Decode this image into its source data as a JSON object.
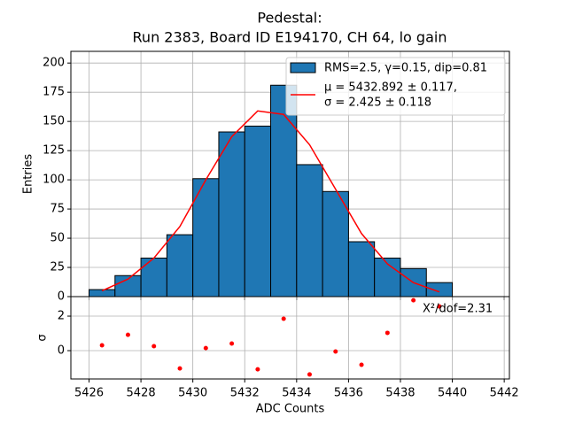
{
  "chart_data": [
    {
      "type": "histogram",
      "title": "Pedestal:",
      "subtitle": "Run 2383, Board ID E194170, CH 64, lo gain",
      "ylabel": "Entries",
      "bins": [
        5426,
        5427,
        5428,
        5429,
        5430,
        5431,
        5432,
        5433,
        5434,
        5435,
        5436,
        5437,
        5438,
        5439,
        5440
      ],
      "counts": [
        6,
        18,
        33,
        53,
        101,
        141,
        146,
        181,
        113,
        90,
        47,
        33,
        24,
        12
      ],
      "name": "RMS=2.5, γ=0.15, dip=0.81",
      "color": "#1f77b4",
      "edgecolor": "#000000",
      "fit": {
        "name": [
          "μ = 5432.892 ± 0.117,",
          "σ = 2.425 ± 0.118"
        ],
        "color": "#ff0000",
        "x": [
          5426.5,
          5427.5,
          5428.5,
          5429.5,
          5430.5,
          5431.5,
          5432.5,
          5433.5,
          5434.5,
          5435.5,
          5436.5,
          5437.5,
          5438.5,
          5439.5
        ],
        "values": [
          5,
          15,
          33,
          60,
          100,
          137,
          159,
          156,
          130,
          92,
          54,
          28,
          12,
          4
        ]
      },
      "xlim": [
        5425.3,
        5442.2
      ],
      "xticks": [
        5426,
        5428,
        5430,
        5432,
        5434,
        5436,
        5438,
        5440,
        5442
      ],
      "ylim": [
        0,
        210
      ],
      "yticks": [
        0,
        25,
        50,
        75,
        100,
        125,
        150,
        175,
        200
      ],
      "grid": true,
      "legend": "upper right"
    },
    {
      "type": "scatter",
      "xlabel": "ADC Counts",
      "ylabel": "σ",
      "annotation": "X²/dof=2.31",
      "color": "#ff0000",
      "x": [
        5426.5,
        5427.5,
        5428.5,
        5429.5,
        5430.5,
        5431.5,
        5432.5,
        5433.5,
        5434.5,
        5435.5,
        5436.5,
        5437.5,
        5438.5,
        5439.5
      ],
      "values": [
        0.31,
        0.92,
        0.26,
        -1.03,
        0.15,
        0.41,
        -1.08,
        1.85,
        -1.38,
        -0.05,
        -0.82,
        1.03,
        2.92,
        2.56
      ],
      "xlim": [
        5425.3,
        5442.2
      ],
      "xticks": [
        5426,
        5428,
        5430,
        5432,
        5434,
        5436,
        5438,
        5440,
        5442
      ],
      "ylim": [
        -1.64,
        3.13
      ],
      "yticks": [
        0,
        2
      ],
      "grid": true
    }
  ]
}
